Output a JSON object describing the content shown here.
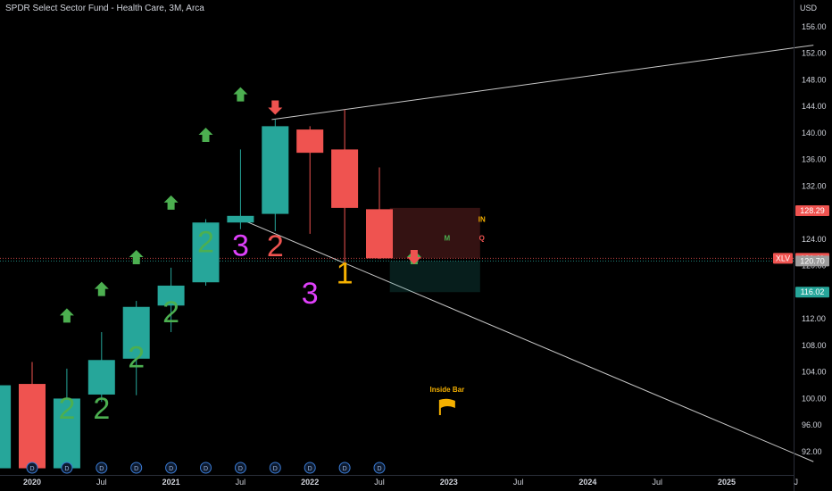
{
  "header": {
    "title": "SPDR Select Sector Fund - Health Care, 3M, Arca"
  },
  "colors": {
    "up": "#26a69a",
    "down": "#ef5350",
    "background": "#000000",
    "axis_text": "#d1d4dc",
    "green_label": "#4caf50",
    "magenta_label": "#e040fb",
    "red_label": "#ef5350",
    "orange_label": "#f5b000",
    "trendline": "#c8c8c8",
    "arrow_up": "#4caf50",
    "arrow_down": "#ef5350",
    "last_price_bg": "#ef5350",
    "level_bg": "#26a69a"
  },
  "chart_data": {
    "type": "candlestick",
    "title": "SPDR Select Sector Fund - Health Care, 3M, Arca",
    "currency": "USD",
    "symbol": "XLV",
    "timeframe": "3M",
    "ylim": [
      88.5,
      160
    ],
    "y_ticks": [
      92.0,
      96.0,
      100.0,
      104.0,
      108.0,
      112.0,
      116.0,
      120.0,
      124.0,
      128.0,
      132.0,
      136.0,
      140.0,
      144.0,
      148.0,
      152.0,
      156.0
    ],
    "x_ticks": [
      {
        "label": "2020",
        "bold": true,
        "idx": 0
      },
      {
        "label": "Jul",
        "bold": false,
        "idx": 2
      },
      {
        "label": "2021",
        "bold": true,
        "idx": 4
      },
      {
        "label": "Jul",
        "bold": false,
        "idx": 6
      },
      {
        "label": "2022",
        "bold": true,
        "idx": 8
      },
      {
        "label": "Jul",
        "bold": false,
        "idx": 10
      },
      {
        "label": "2023",
        "bold": true,
        "idx": 12
      },
      {
        "label": "Jul",
        "bold": false,
        "idx": 14
      },
      {
        "label": "2024",
        "bold": true,
        "idx": 16
      },
      {
        "label": "Jul",
        "bold": false,
        "idx": 18
      },
      {
        "label": "2025",
        "bold": true,
        "idx": 20
      },
      {
        "label": "J",
        "bold": false,
        "idx": 22
      }
    ],
    "candles": [
      {
        "idx": -1,
        "open": 89.5,
        "high": 102.0,
        "low": 89.5,
        "close": 102.0
      },
      {
        "idx": 0,
        "open": 102.2,
        "high": 105.5,
        "low": 89.5,
        "close": 89.5
      },
      {
        "idx": 1,
        "open": 89.5,
        "high": 104.5,
        "low": 89.5,
        "close": 100.0
      },
      {
        "idx": 2,
        "open": 100.6,
        "high": 110.0,
        "low": 99.5,
        "close": 105.8
      },
      {
        "idx": 3,
        "open": 106.0,
        "high": 114.7,
        "low": 100.5,
        "close": 113.8
      },
      {
        "idx": 4,
        "open": 114.0,
        "high": 119.7,
        "low": 110.0,
        "close": 117.0
      },
      {
        "idx": 5,
        "open": 117.5,
        "high": 127.0,
        "low": 117.0,
        "close": 126.5
      },
      {
        "idx": 6,
        "open": 126.5,
        "high": 137.5,
        "low": 125.5,
        "close": 127.5
      },
      {
        "idx": 7,
        "open": 127.8,
        "high": 142.0,
        "low": 125.2,
        "close": 141.0
      },
      {
        "idx": 8,
        "open": 140.5,
        "high": 141.0,
        "low": 124.8,
        "close": 137.0
      },
      {
        "idx": 9,
        "open": 137.5,
        "high": 143.5,
        "low": 119.0,
        "close": 128.7
      },
      {
        "idx": 10,
        "open": 128.5,
        "high": 134.8,
        "low": 121.0,
        "close": 121.11
      }
    ],
    "candle_labels": [
      {
        "idx": 1,
        "text": "2",
        "color": "green",
        "price": 97.0
      },
      {
        "idx": 2,
        "text": "2",
        "color": "green",
        "price": 97.0
      },
      {
        "idx": 3,
        "text": "2",
        "color": "green",
        "price": 104.7
      },
      {
        "idx": 4,
        "text": "2",
        "color": "green",
        "price": 111.5
      },
      {
        "idx": 5,
        "text": "2",
        "color": "green",
        "price": 122.0
      },
      {
        "idx": 6,
        "text": "3",
        "color": "magenta",
        "price": 121.5
      },
      {
        "idx": 7,
        "text": "2",
        "color": "red",
        "price": 121.4
      },
      {
        "idx": 8,
        "text": "3",
        "color": "magenta",
        "price": 114.3
      },
      {
        "idx": 9,
        "text": "1",
        "color": "orange",
        "price": 117.3
      }
    ],
    "up_arrows": [
      {
        "idx": 1,
        "price": 112.5
      },
      {
        "idx": 2,
        "price": 116.5
      },
      {
        "idx": 3,
        "price": 121.3
      },
      {
        "idx": 4,
        "price": 129.5
      },
      {
        "idx": 5,
        "price": 139.7
      },
      {
        "idx": 6,
        "price": 145.8
      },
      {
        "idx": 11,
        "price": 121.3
      }
    ],
    "down_arrows": [
      {
        "idx": 7,
        "price": 143.8
      },
      {
        "idx": 11,
        "price": 121.3
      }
    ],
    "trendlines": [
      {
        "from": {
          "idx": 6.9,
          "price": 142.0
        },
        "to": {
          "idx": 22.5,
          "price": 153.2
        }
      },
      {
        "from": {
          "idx": 6.1,
          "price": 126.8
        },
        "to": {
          "idx": 22.5,
          "price": 90.5
        }
      }
    ],
    "boxes": [
      {
        "name": "red-range-box",
        "from_idx": 10.3,
        "to_idx": 12.9,
        "top": 128.7,
        "bottom": 121.11,
        "fill": "rgba(239,83,80,0.22)"
      },
      {
        "name": "green-range-box",
        "from_idx": 10.3,
        "to_idx": 12.9,
        "top": 120.7,
        "bottom": 116.02,
        "fill": "rgba(38,166,154,0.18)"
      }
    ],
    "box_labels": [
      {
        "text": "IN",
        "color": "#f5b000",
        "idx": 12.95,
        "price": 126.6
      },
      {
        "text": "M",
        "color": "#4caf50",
        "idx": 11.95,
        "price": 123.8
      },
      {
        "text": "Q",
        "color": "#ef5350",
        "idx": 12.95,
        "price": 123.8
      }
    ],
    "annotation": {
      "text": "Inside Bar",
      "idx": 11.95,
      "price": 101.0,
      "icon": "flag-icon"
    },
    "horizontal_levels": [
      {
        "price": 121.11,
        "color": "#ef5350",
        "style": "dotted"
      },
      {
        "price": 120.7,
        "color": "#26a69a",
        "style": "dotted"
      }
    ],
    "price_badges": [
      {
        "label": "128.29",
        "price": 128.29,
        "bg": "#ef5350"
      },
      {
        "label": "XLV",
        "price": 121.11,
        "bg": "#ef5350",
        "side": "left"
      },
      {
        "label": "121.11",
        "price": 121.11,
        "bg": "#ef5350"
      },
      {
        "label": "120.70",
        "price": 120.7,
        "bg": "#9e9e9e"
      },
      {
        "label": "116.02",
        "price": 116.02,
        "bg": "#26a69a"
      }
    ],
    "dividend_markers": {
      "label": "D",
      "idx": [
        0,
        1,
        2,
        3,
        4,
        5,
        6,
        7,
        8,
        9,
        10
      ]
    }
  }
}
